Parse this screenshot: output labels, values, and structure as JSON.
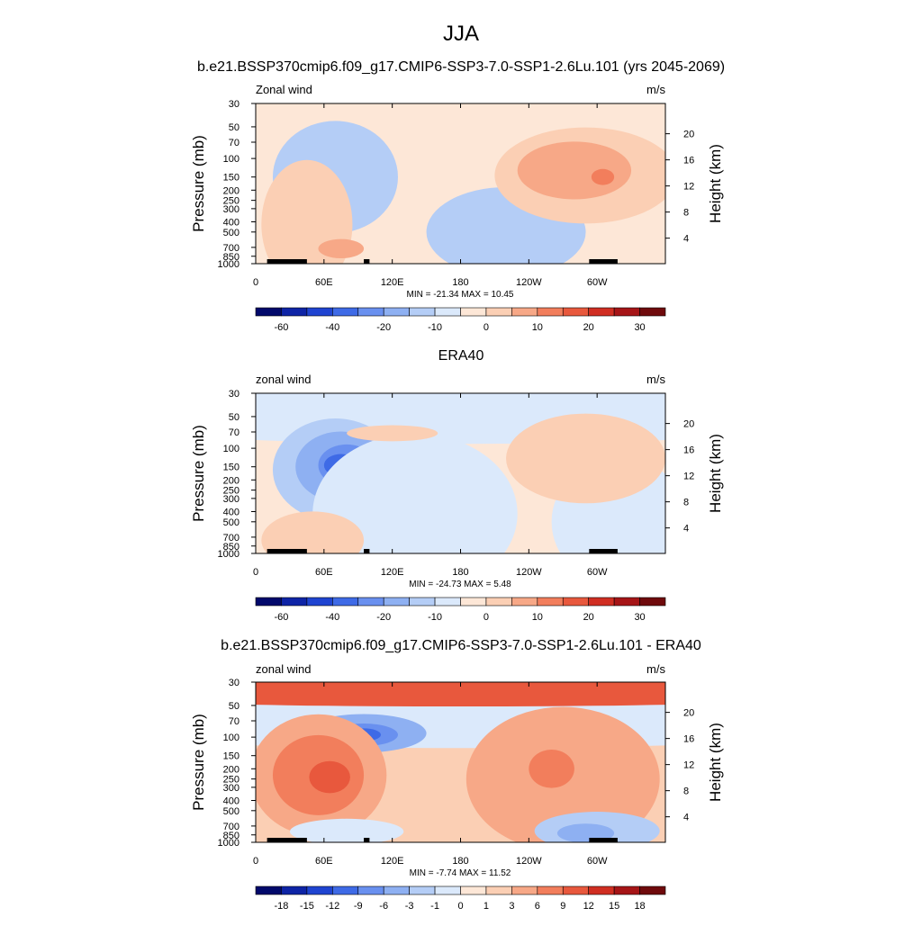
{
  "figure": {
    "title": "JJA"
  },
  "colors": {
    "fill_positive": [
      "#fde7d7",
      "#fbcfb4",
      "#f7a887",
      "#f27e5c",
      "#e8583d",
      "#d02e22",
      "#a61517",
      "#6f0a0c"
    ],
    "fill_negative": [
      "#dbe9fb",
      "#b4cdf6",
      "#8eb0f2",
      "#6990ef",
      "#3e6ae6",
      "#1f44d1",
      "#0e24a6",
      "#02096b"
    ]
  },
  "chart_data": [
    {
      "type": "heatmap",
      "title": "b.e21.BSSP370cmip6.f09_g17.CMIP6-SSP3-7.0-SSP1-2.6Lu.101 (yrs 2045-2069)",
      "left_label": "Zonal wind",
      "right_label": "m/s",
      "ylabel": "Pressure (mb)",
      "y2label": "Height (km)",
      "xticks": [
        "0",
        "60E",
        "120E",
        "180",
        "120W",
        "60W"
      ],
      "yticks": [
        "30",
        "50",
        "70",
        "100",
        "150",
        "200",
        "250",
        "300",
        "400",
        "500",
        "700",
        "850",
        "1000"
      ],
      "y2ticks": [
        "20",
        "16",
        "12",
        "8",
        "4"
      ],
      "stats": "MIN = -21.34  MAX =  10.45",
      "colorbar_ticks": [
        "-60",
        "-40",
        "-20",
        "-10",
        "0",
        "10",
        "20",
        "30"
      ],
      "background_level": 1,
      "blobs": [
        {
          "lon": 80,
          "p": 135,
          "rlon": 40,
          "rlev": 0.27,
          "level": -3
        },
        {
          "lon": 82,
          "p": 135,
          "rlon": 28,
          "rlev": 0.18,
          "level": -4
        },
        {
          "lon": 80,
          "p": 135,
          "rlon": 15,
          "rlev": 0.1,
          "level": -5
        },
        {
          "lon": 70,
          "p": 150,
          "rlon": 55,
          "rlev": 0.35,
          "level": -2
        },
        {
          "lon": 220,
          "p": 500,
          "rlon": 70,
          "rlev": 0.28,
          "level": -2
        },
        {
          "lon": 330,
          "p": 140,
          "rlon": 30,
          "rlev": 0.22,
          "level": -1
        },
        {
          "lon": 290,
          "p": 145,
          "rlon": 80,
          "rlev": 0.3,
          "level": 2
        },
        {
          "lon": 280,
          "p": 130,
          "rlon": 50,
          "rlev": 0.18,
          "level": 3
        },
        {
          "lon": 305,
          "p": 150,
          "rlon": 10,
          "rlev": 0.05,
          "level": 4
        },
        {
          "lon": 45,
          "p": 420,
          "rlon": 40,
          "rlev": 0.4,
          "level": 2
        },
        {
          "lon": 75,
          "p": 720,
          "rlon": 20,
          "rlev": 0.06,
          "level": 3
        }
      ]
    },
    {
      "type": "heatmap",
      "title": "ERA40",
      "left_label": "zonal wind",
      "right_label": "m/s",
      "ylabel": "Pressure (mb)",
      "y2label": "Height (km)",
      "xticks": [
        "0",
        "60E",
        "120E",
        "180",
        "120W",
        "60W"
      ],
      "yticks": [
        "30",
        "50",
        "70",
        "100",
        "150",
        "200",
        "250",
        "300",
        "400",
        "500",
        "700",
        "850",
        "1000"
      ],
      "y2ticks": [
        "20",
        "16",
        "12",
        "8",
        "4"
      ],
      "stats": "MIN = -24.73  MAX =   5.48",
      "colorbar_ticks": [
        "-60",
        "-40",
        "-20",
        "-10",
        "0",
        "10",
        "20",
        "30"
      ],
      "background_level": 1,
      "blobs": [
        {
          "lon": 180,
          "p": 42,
          "rlon": 400,
          "rlev": 0.22,
          "level": -1
        },
        {
          "lon": 70,
          "p": 160,
          "rlon": 55,
          "rlev": 0.32,
          "level": -2
        },
        {
          "lon": 75,
          "p": 150,
          "rlon": 40,
          "rlev": 0.22,
          "level": -3
        },
        {
          "lon": 80,
          "p": 145,
          "rlon": 25,
          "rlev": 0.13,
          "level": -4
        },
        {
          "lon": 75,
          "p": 145,
          "rlon": 15,
          "rlev": 0.07,
          "level": -5
        },
        {
          "lon": 140,
          "p": 420,
          "rlon": 90,
          "rlev": 0.5,
          "level": -1
        },
        {
          "lon": 320,
          "p": 500,
          "rlon": 60,
          "rlev": 0.4,
          "level": -1
        },
        {
          "lon": 290,
          "p": 125,
          "rlon": 70,
          "rlev": 0.28,
          "level": 2
        },
        {
          "lon": 50,
          "p": 750,
          "rlon": 45,
          "rlev": 0.18,
          "level": 2
        },
        {
          "lon": 120,
          "p": 72,
          "rlon": 40,
          "rlev": 0.05,
          "level": 2
        }
      ]
    },
    {
      "type": "heatmap",
      "title": "b.e21.BSSP370cmip6.f09_g17.CMIP6-SSP3-7.0-SSP1-2.6Lu.101 - ERA40",
      "left_label": "zonal wind",
      "right_label": "m/s",
      "ylabel": "Pressure (mb)",
      "y2label": "Height (km)",
      "xticks": [
        "0",
        "60E",
        "120E",
        "180",
        "120W",
        "60W"
      ],
      "yticks": [
        "30",
        "50",
        "70",
        "100",
        "150",
        "200",
        "250",
        "300",
        "400",
        "500",
        "700",
        "850",
        "1000"
      ],
      "y2ticks": [
        "20",
        "16",
        "12",
        "8",
        "4"
      ],
      "stats": "MIN =  -7.74  MAX =  11.52",
      "colorbar_ticks": [
        "-18",
        "-15",
        "-12",
        "-9",
        "-6",
        "-3",
        "-1",
        "0",
        "1",
        "3",
        "6",
        "9",
        "12",
        "15",
        "18"
      ],
      "background_level": 2,
      "blobs": [
        {
          "lon": 180,
          "p": 75,
          "rlon": 400,
          "rlev": 0.15,
          "level": -1
        },
        {
          "lon": 95,
          "p": 92,
          "rlon": 55,
          "rlev": 0.12,
          "level": -3
        },
        {
          "lon": 95,
          "p": 95,
          "rlon": 30,
          "rlev": 0.07,
          "level": -4
        },
        {
          "lon": 95,
          "p": 95,
          "rlon": 15,
          "rlev": 0.04,
          "level": -5
        },
        {
          "lon": 180,
          "p": 36,
          "rlon": 400,
          "rlev": 0.1,
          "level": 5
        },
        {
          "lon": 55,
          "p": 230,
          "rlon": 60,
          "rlev": 0.38,
          "level": 3
        },
        {
          "lon": 55,
          "p": 230,
          "rlon": 40,
          "rlev": 0.25,
          "level": 4
        },
        {
          "lon": 65,
          "p": 240,
          "rlon": 18,
          "rlev": 0.1,
          "level": 5
        },
        {
          "lon": 270,
          "p": 250,
          "rlon": 85,
          "rlev": 0.45,
          "level": 3
        },
        {
          "lon": 260,
          "p": 200,
          "rlon": 20,
          "rlev": 0.12,
          "level": 4
        },
        {
          "lon": 300,
          "p": 780,
          "rlon": 55,
          "rlev": 0.12,
          "level": -2
        },
        {
          "lon": 290,
          "p": 820,
          "rlon": 25,
          "rlev": 0.06,
          "level": -3
        },
        {
          "lon": 80,
          "p": 790,
          "rlon": 50,
          "rlev": 0.08,
          "level": -1
        }
      ]
    }
  ]
}
